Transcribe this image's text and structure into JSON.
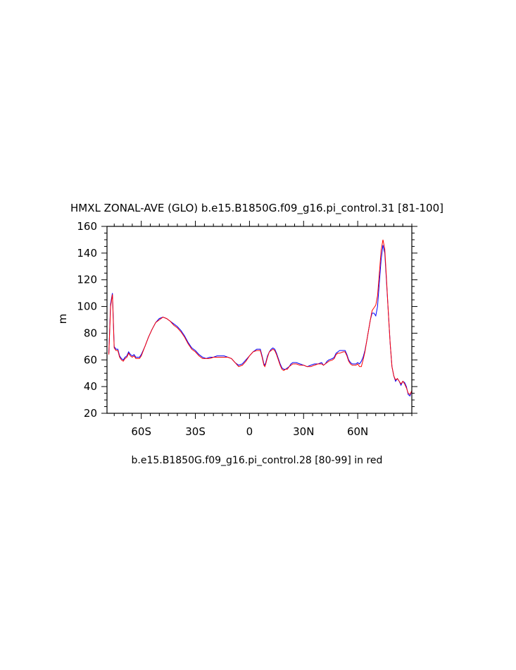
{
  "chart_data": {
    "type": "line",
    "title": "HMXL ZONAL-AVE (GLO) b.e15.B1850G.f09_g16.pi_control.31 [81-100]",
    "subtitle": "b.e15.B1850G.f09_g16.pi_control.28 [80-99] in red",
    "xlabel": "",
    "ylabel": "m",
    "xlim": [
      -79,
      90
    ],
    "ylim": [
      20,
      160
    ],
    "x_ticks": [
      -60,
      -30,
      0,
      30,
      60
    ],
    "x_tick_labels": [
      "60S",
      "30S",
      "0",
      "30N",
      "60N"
    ],
    "y_ticks": [
      20,
      40,
      60,
      80,
      100,
      120,
      140,
      160
    ],
    "y_tick_labels": [
      "20",
      "40",
      "60",
      "80",
      "100",
      "120",
      "140",
      "160"
    ],
    "grid": false,
    "series": [
      {
        "color": "#0000ff",
        "points": [
          [
            -78,
            65
          ],
          [
            -77,
            102
          ],
          [
            -76,
            110
          ],
          [
            -75.5,
            90
          ],
          [
            -75,
            70
          ],
          [
            -74,
            68
          ],
          [
            -73,
            68
          ],
          [
            -72,
            63
          ],
          [
            -71,
            61
          ],
          [
            -70,
            60
          ],
          [
            -69,
            62
          ],
          [
            -68,
            63
          ],
          [
            -67,
            66
          ],
          [
            -66,
            64
          ],
          [
            -65,
            63
          ],
          [
            -64,
            64
          ],
          [
            -63,
            62
          ],
          [
            -62,
            62
          ],
          [
            -61,
            62
          ],
          [
            -60,
            64
          ],
          [
            -58,
            70
          ],
          [
            -56,
            77
          ],
          [
            -54,
            83
          ],
          [
            -52,
            88
          ],
          [
            -50,
            91
          ],
          [
            -48,
            92
          ],
          [
            -46,
            91
          ],
          [
            -44,
            89
          ],
          [
            -42,
            87
          ],
          [
            -40,
            85
          ],
          [
            -38,
            82
          ],
          [
            -36,
            78
          ],
          [
            -34,
            73
          ],
          [
            -32,
            69
          ],
          [
            -30,
            67
          ],
          [
            -28,
            64
          ],
          [
            -26,
            62
          ],
          [
            -24,
            61
          ],
          [
            -22,
            62
          ],
          [
            -20,
            62
          ],
          [
            -18,
            63
          ],
          [
            -16,
            63
          ],
          [
            -14,
            63
          ],
          [
            -12,
            62
          ],
          [
            -10,
            61
          ],
          [
            -8,
            58
          ],
          [
            -6,
            56
          ],
          [
            -4,
            57
          ],
          [
            -2,
            60
          ],
          [
            0,
            63
          ],
          [
            2,
            66
          ],
          [
            4,
            68
          ],
          [
            6,
            68
          ],
          [
            7,
            63
          ],
          [
            8,
            57
          ],
          [
            8.5,
            56
          ],
          [
            9,
            58
          ],
          [
            10,
            63
          ],
          [
            11,
            66
          ],
          [
            12,
            68
          ],
          [
            13,
            69
          ],
          [
            14,
            68
          ],
          [
            15,
            65
          ],
          [
            16,
            61
          ],
          [
            17,
            57
          ],
          [
            18,
            54
          ],
          [
            19,
            53
          ],
          [
            20,
            53
          ],
          [
            21,
            54
          ],
          [
            22,
            55
          ],
          [
            23,
            57
          ],
          [
            24,
            58
          ],
          [
            26,
            58
          ],
          [
            28,
            57
          ],
          [
            30,
            56
          ],
          [
            32,
            55
          ],
          [
            34,
            56
          ],
          [
            36,
            57
          ],
          [
            38,
            57
          ],
          [
            40,
            58
          ],
          [
            41,
            56
          ],
          [
            42,
            57
          ],
          [
            43,
            59
          ],
          [
            44,
            60
          ],
          [
            46,
            61
          ],
          [
            47,
            62
          ],
          [
            48,
            65
          ],
          [
            49,
            66
          ],
          [
            50,
            67
          ],
          [
            52,
            67
          ],
          [
            53,
            67
          ],
          [
            54,
            64
          ],
          [
            55,
            60
          ],
          [
            56,
            58
          ],
          [
            57,
            57
          ],
          [
            58,
            57
          ],
          [
            59,
            57
          ],
          [
            60,
            58
          ],
          [
            61,
            57
          ],
          [
            62,
            59
          ],
          [
            63,
            62
          ],
          [
            64,
            67
          ],
          [
            65,
            74
          ],
          [
            66,
            82
          ],
          [
            67,
            90
          ],
          [
            68,
            95
          ],
          [
            69,
            95
          ],
          [
            70,
            93
          ],
          [
            71,
            100
          ],
          [
            72,
            118
          ],
          [
            73,
            135
          ],
          [
            74,
            146
          ],
          [
            75,
            140
          ],
          [
            76,
            118
          ],
          [
            77,
            95
          ],
          [
            78,
            72
          ],
          [
            79,
            55
          ],
          [
            80,
            48
          ],
          [
            81,
            44
          ],
          [
            82,
            46
          ],
          [
            83,
            44
          ],
          [
            84,
            41
          ],
          [
            85,
            44
          ],
          [
            86,
            43
          ],
          [
            87,
            40
          ],
          [
            88,
            34
          ],
          [
            89,
            33
          ],
          [
            90,
            37
          ],
          [
            91,
            44
          ],
          [
            92,
            47
          ],
          [
            93,
            50
          ],
          [
            94,
            52
          ],
          [
            96,
            56
          ],
          [
            98,
            60
          ],
          [
            100,
            62
          ],
          [
            101,
            63
          ],
          [
            102,
            63
          ]
        ]
      },
      {
        "color": "#ff0000",
        "points": [
          [
            -78,
            64
          ],
          [
            -77,
            100
          ],
          [
            -76,
            109
          ],
          [
            -75.5,
            88
          ],
          [
            -75,
            69
          ],
          [
            -74,
            67
          ],
          [
            -73,
            67
          ],
          [
            -72,
            62
          ],
          [
            -71,
            60
          ],
          [
            -70,
            59
          ],
          [
            -69,
            61
          ],
          [
            -68,
            62
          ],
          [
            -67,
            65
          ],
          [
            -66,
            63
          ],
          [
            -65,
            62
          ],
          [
            -64,
            63
          ],
          [
            -63,
            61
          ],
          [
            -62,
            61
          ],
          [
            -61,
            61
          ],
          [
            -60,
            63
          ],
          [
            -58,
            70
          ],
          [
            -56,
            77
          ],
          [
            -54,
            83
          ],
          [
            -52,
            88
          ],
          [
            -50,
            90
          ],
          [
            -48,
            92
          ],
          [
            -46,
            91
          ],
          [
            -44,
            89
          ],
          [
            -42,
            86
          ],
          [
            -40,
            84
          ],
          [
            -38,
            81
          ],
          [
            -36,
            77
          ],
          [
            -34,
            72
          ],
          [
            -32,
            68
          ],
          [
            -30,
            66
          ],
          [
            -28,
            63
          ],
          [
            -26,
            61
          ],
          [
            -24,
            61
          ],
          [
            -22,
            61
          ],
          [
            -20,
            62
          ],
          [
            -18,
            62
          ],
          [
            -16,
            62
          ],
          [
            -14,
            62
          ],
          [
            -12,
            62
          ],
          [
            -10,
            61
          ],
          [
            -8,
            58
          ],
          [
            -6,
            55
          ],
          [
            -4,
            56
          ],
          [
            -2,
            59
          ],
          [
            0,
            63
          ],
          [
            2,
            66
          ],
          [
            4,
            67
          ],
          [
            6,
            67
          ],
          [
            7,
            62
          ],
          [
            8,
            56
          ],
          [
            8.5,
            55
          ],
          [
            9,
            57
          ],
          [
            10,
            62
          ],
          [
            11,
            66
          ],
          [
            12,
            67
          ],
          [
            13,
            68
          ],
          [
            14,
            67
          ],
          [
            15,
            64
          ],
          [
            16,
            60
          ],
          [
            17,
            56
          ],
          [
            18,
            53
          ],
          [
            19,
            52
          ],
          [
            20,
            53
          ],
          [
            21,
            53
          ],
          [
            22,
            55
          ],
          [
            23,
            56
          ],
          [
            24,
            57
          ],
          [
            26,
            57
          ],
          [
            28,
            56
          ],
          [
            30,
            56
          ],
          [
            32,
            55
          ],
          [
            34,
            55
          ],
          [
            36,
            56
          ],
          [
            38,
            57
          ],
          [
            40,
            57
          ],
          [
            41,
            56
          ],
          [
            42,
            57
          ],
          [
            43,
            58
          ],
          [
            44,
            59
          ],
          [
            46,
            60
          ],
          [
            47,
            61
          ],
          [
            48,
            64
          ],
          [
            49,
            65
          ],
          [
            50,
            65
          ],
          [
            52,
            66
          ],
          [
            53,
            66
          ],
          [
            54,
            63
          ],
          [
            55,
            59
          ],
          [
            56,
            57
          ],
          [
            57,
            56
          ],
          [
            58,
            56
          ],
          [
            59,
            56
          ],
          [
            60,
            57
          ],
          [
            61,
            55
          ],
          [
            62,
            55
          ],
          [
            63,
            60
          ],
          [
            64,
            66
          ],
          [
            65,
            74
          ],
          [
            66,
            82
          ],
          [
            67,
            90
          ],
          [
            68,
            97
          ],
          [
            69,
            99
          ],
          [
            70,
            101
          ],
          [
            71,
            108
          ],
          [
            72,
            125
          ],
          [
            73,
            142
          ],
          [
            74,
            150
          ],
          [
            75,
            143
          ],
          [
            76,
            120
          ],
          [
            77,
            95
          ],
          [
            78,
            72
          ],
          [
            79,
            55
          ],
          [
            80,
            48
          ],
          [
            81,
            45
          ],
          [
            82,
            46
          ],
          [
            83,
            44
          ],
          [
            84,
            42
          ],
          [
            85,
            44
          ],
          [
            86,
            42
          ],
          [
            87,
            39
          ],
          [
            88,
            35
          ],
          [
            89,
            34
          ],
          [
            90,
            37
          ],
          [
            91,
            44
          ],
          [
            92,
            47
          ],
          [
            93,
            50
          ],
          [
            94,
            52
          ],
          [
            96,
            55
          ],
          [
            98,
            57
          ],
          [
            100,
            59
          ],
          [
            101,
            60
          ],
          [
            102,
            60
          ]
        ]
      }
    ]
  }
}
